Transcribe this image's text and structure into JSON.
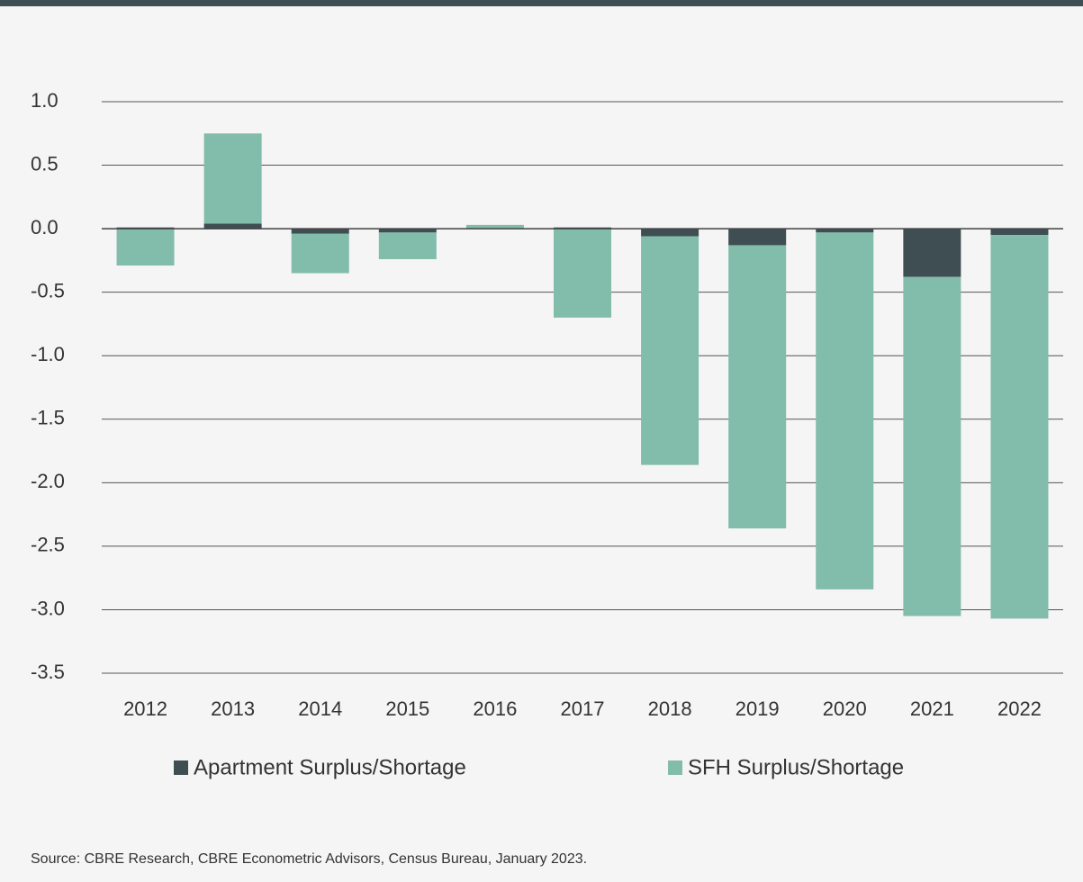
{
  "chart_data": {
    "type": "stacked_bar",
    "categories": [
      "2012",
      "2013",
      "2014",
      "2015",
      "2016",
      "2017",
      "2018",
      "2019",
      "2020",
      "2021",
      "2022"
    ],
    "series": [
      {
        "name": "Apartment Surplus/Shortage",
        "color": "#3f4e52",
        "values": [
          0.01,
          0.04,
          -0.04,
          -0.03,
          0.0,
          0.01,
          -0.06,
          -0.13,
          -0.03,
          -0.38,
          -0.05
        ]
      },
      {
        "name": "SFH Surplus/Shortage",
        "color": "#82bcab",
        "values": [
          -0.29,
          0.71,
          -0.31,
          -0.21,
          0.03,
          -0.7,
          -1.8,
          -2.23,
          -2.81,
          -2.67,
          -3.02
        ]
      }
    ],
    "ylim": [
      -3.5,
      1.0
    ],
    "yticks": [
      {
        "value": 1.0,
        "label": "1.0"
      },
      0.5,
      {
        "value": 0.0,
        "label": "0.0"
      },
      -0.5,
      {
        "value": -1.0,
        "label": "-1.0"
      },
      -1.5,
      {
        "value": -2.0,
        "label": "-2.0"
      },
      -2.5,
      {
        "value": -3.0,
        "label": "-3.0"
      },
      -3.5
    ],
    "grid": true,
    "legend": "bottom",
    "source": "Source: CBRE Research, CBRE Econometric Advisors, Census Bureau, January 2023."
  }
}
